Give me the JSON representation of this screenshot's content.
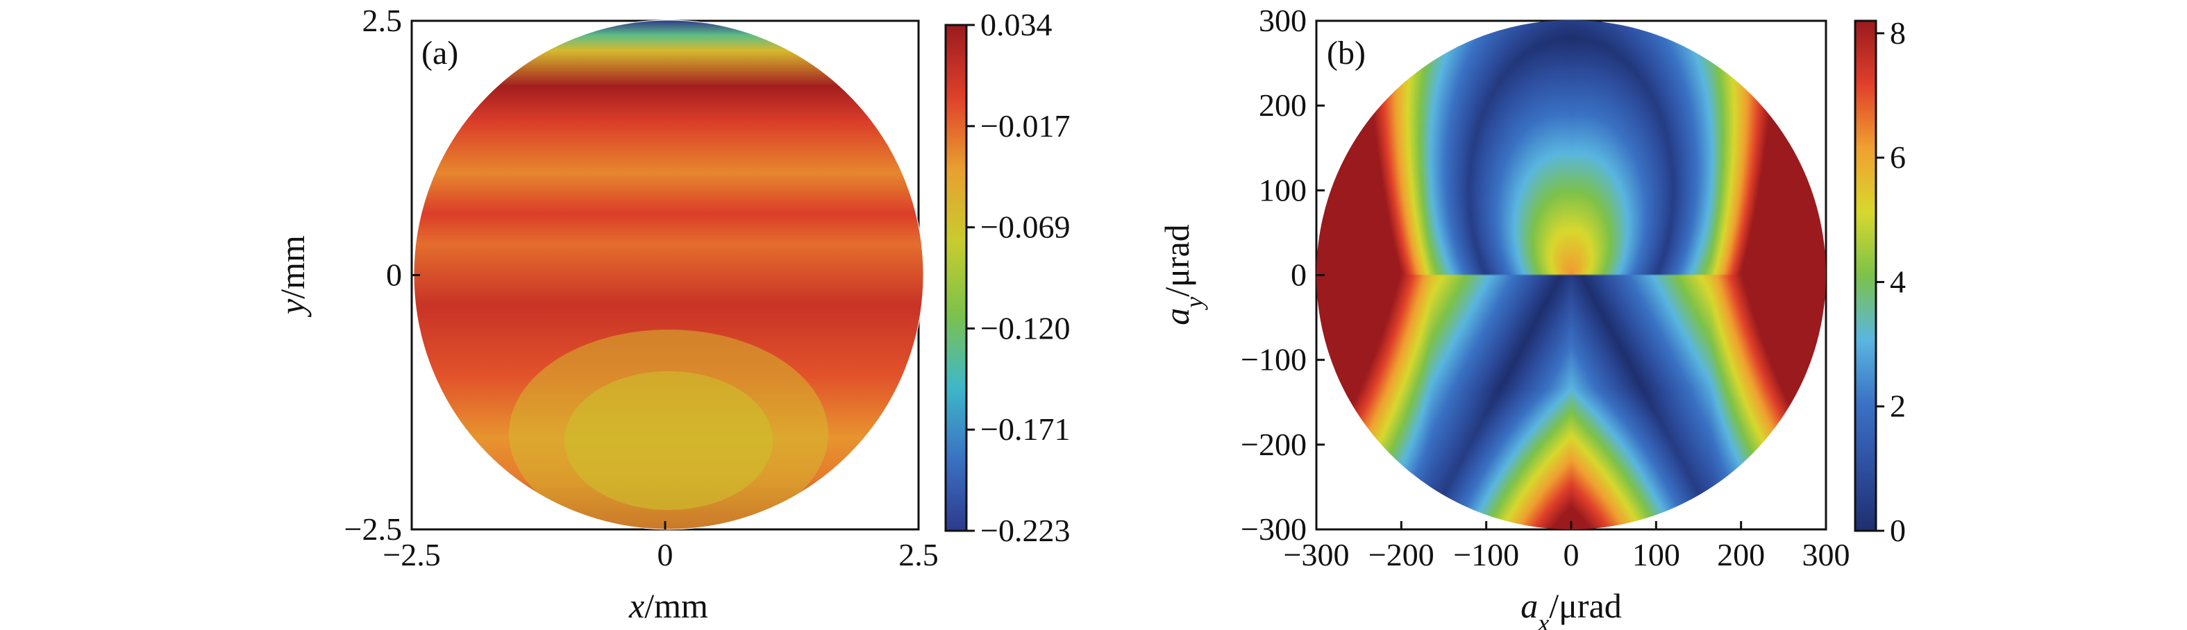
{
  "chart_data": [
    {
      "type": "heatmap",
      "panel_label": "(a)",
      "xlabel": {
        "var": "x",
        "unit": "/mm"
      },
      "ylabel": {
        "var": "y",
        "unit": "/mm"
      },
      "xlim": [
        -2.5,
        2.5
      ],
      "ylim": [
        -2.5,
        2.5
      ],
      "x_ticks": [
        "−2.5",
        "0",
        "2.5"
      ],
      "y_ticks": [
        "2.5",
        "0",
        "−2.5"
      ],
      "colorbar": {
        "range": [
          -0.223,
          0.034
        ],
        "tick_labels": [
          "0.034",
          "−0.017",
          "−0.069",
          "−0.120",
          "−0.171",
          "−0.223"
        ],
        "colormap": [
          "#2d3a8c",
          "#3a72c4",
          "#3fb8c8",
          "#7cc24a",
          "#c8cc2e",
          "#e8a030",
          "#e0402a",
          "#9a1a1e"
        ]
      },
      "bands": [
        {
          "y": 2.5,
          "value": -0.223
        },
        {
          "y": 2.35,
          "value": -0.13
        },
        {
          "y": 2.2,
          "value": -0.06
        },
        {
          "y": 1.85,
          "value": 0.03
        },
        {
          "y": 1.5,
          "value": 0.0
        },
        {
          "y": 1.0,
          "value": -0.03
        },
        {
          "y": 0.6,
          "value": 0.0
        },
        {
          "y": 0.3,
          "value": -0.02
        },
        {
          "y": -0.3,
          "value": 0.01
        },
        {
          "y": -1.0,
          "value": -0.01
        },
        {
          "y": -1.6,
          "value": -0.035
        },
        {
          "y": -2.0,
          "value": -0.025
        },
        {
          "y": -2.5,
          "value": 0.015
        }
      ]
    },
    {
      "type": "heatmap",
      "panel_label": "(b)",
      "xlabel": {
        "var": "a",
        "sub": "x",
        "unit": "/μrad"
      },
      "ylabel": {
        "var": "a",
        "sub": "y",
        "unit": "/μrad"
      },
      "xlim": [
        -300,
        300
      ],
      "ylim": [
        -300,
        300
      ],
      "x_ticks": [
        "−300",
        "−200",
        "−100",
        "0",
        "100",
        "200",
        "300"
      ],
      "y_ticks": [
        "300",
        "200",
        "100",
        "0",
        "−100",
        "−200",
        "−300"
      ],
      "colorbar": {
        "range": [
          0,
          8.2
        ],
        "tick_labels": [
          "8",
          "6",
          "4",
          "2",
          "0"
        ],
        "colormap": [
          "#1e2f6e",
          "#2e4fa0",
          "#3a72c4",
          "#5ab6e0",
          "#7cc24a",
          "#d8d82e",
          "#f0a030",
          "#e0402a",
          "#9a1a1e"
        ]
      },
      "field_model": "|r| - 0.43 - |y| * 0.68 (valleys along hyperbola-like dark lines, peaks at left/right edges)"
    }
  ]
}
